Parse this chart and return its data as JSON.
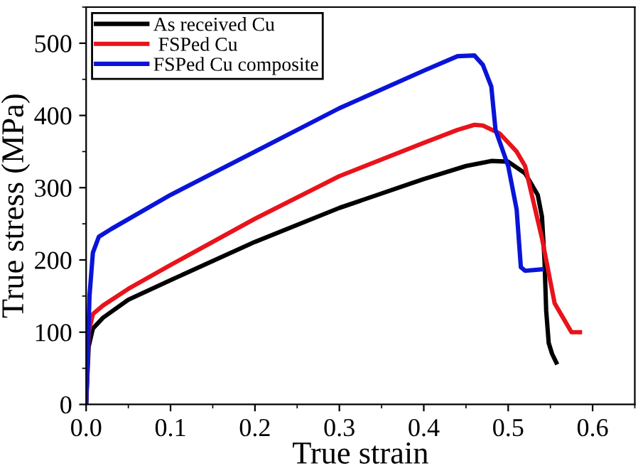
{
  "chart_data": {
    "type": "line",
    "xlabel": "True strain",
    "ylabel": "True stress (MPa)",
    "xlim": [
      0,
      0.65
    ],
    "ylim": [
      0,
      550
    ],
    "xticks": [
      {
        "value": 0,
        "label": "0.0"
      },
      0.1,
      0.2,
      0.3,
      0.4,
      0.5,
      0.6
    ],
    "yticks": [
      0,
      100,
      200,
      300,
      400,
      500
    ],
    "legend": "top left",
    "grid": false,
    "marker": "none",
    "line_style": "solid",
    "series": [
      {
        "name": "As received Cu",
        "color": "#000000",
        "x": [
          0,
          0.003,
          0.008,
          0.02,
          0.05,
          0.1,
          0.2,
          0.3,
          0.4,
          0.45,
          0.48,
          0.5,
          0.52,
          0.535,
          0.54,
          0.543,
          0.545,
          0.548,
          0.552,
          0.557
        ],
        "values": [
          0,
          80,
          105,
          120,
          145,
          172,
          225,
          272,
          312,
          330,
          337,
          336,
          320,
          290,
          260,
          200,
          130,
          85,
          70,
          58
        ]
      },
      {
        "name": " FSPed Cu",
        "color": "#e8131b",
        "x": [
          0,
          0.003,
          0.008,
          0.02,
          0.05,
          0.1,
          0.2,
          0.3,
          0.4,
          0.44,
          0.46,
          0.47,
          0.49,
          0.51,
          0.52,
          0.53,
          0.54,
          0.55,
          0.555,
          0.565,
          0.575,
          0.585
        ],
        "values": [
          0,
          100,
          125,
          137,
          160,
          193,
          257,
          316,
          362,
          380,
          387,
          386,
          375,
          350,
          330,
          280,
          230,
          170,
          140,
          120,
          100,
          100
        ]
      },
      {
        "name": "FSPed Cu composite",
        "color": "#0a14d8",
        "x": [
          0,
          0.004,
          0.008,
          0.015,
          0.03,
          0.1,
          0.2,
          0.3,
          0.4,
          0.44,
          0.46,
          0.47,
          0.48,
          0.485,
          0.5,
          0.51,
          0.515,
          0.52,
          0.54
        ],
        "values": [
          0,
          150,
          210,
          232,
          243,
          290,
          350,
          410,
          462,
          482,
          483,
          470,
          440,
          380,
          330,
          270,
          190,
          185,
          187
        ]
      }
    ]
  }
}
